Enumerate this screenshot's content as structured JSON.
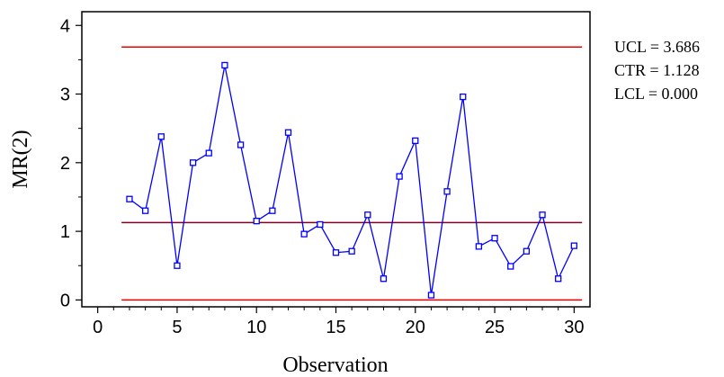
{
  "chart_data": {
    "type": "line",
    "xlabel": "Observation",
    "ylabel": "MR(2)",
    "xlim": [
      -1,
      31
    ],
    "ylim": [
      -0.1,
      4.2
    ],
    "x_ticks": [
      0,
      5,
      10,
      15,
      20,
      25,
      30
    ],
    "y_ticks": [
      0,
      1,
      2,
      3,
      4
    ],
    "limits": {
      "ucl": {
        "label": "UCL = 3.686",
        "value": 3.686
      },
      "ctr": {
        "label": "CTR = 1.128",
        "value": 1.128
      },
      "lcl": {
        "label": "LCL = 0.000",
        "value": 0.0
      }
    },
    "limit_x_range": [
      1.5,
      30.5
    ],
    "series": [
      {
        "x": [
          2,
          3,
          4,
          5,
          6,
          7,
          8,
          9,
          10,
          11,
          12,
          13,
          14,
          15,
          16,
          17,
          18,
          19,
          20,
          21,
          22,
          23,
          24,
          25,
          26,
          27,
          28,
          29,
          30
        ],
        "y": [
          1.47,
          1.3,
          2.38,
          0.5,
          2.0,
          2.14,
          3.42,
          2.26,
          1.15,
          1.3,
          2.44,
          0.96,
          1.1,
          0.69,
          0.71,
          1.24,
          0.31,
          1.8,
          2.32,
          0.07,
          1.58,
          2.96,
          0.78,
          0.9,
          0.49,
          0.71,
          1.24,
          0.31,
          0.79
        ]
      }
    ],
    "grid": false,
    "colors": {
      "data_line": "#0000ff",
      "limit_line": "#ee0000",
      "center_line": "#800020"
    }
  }
}
